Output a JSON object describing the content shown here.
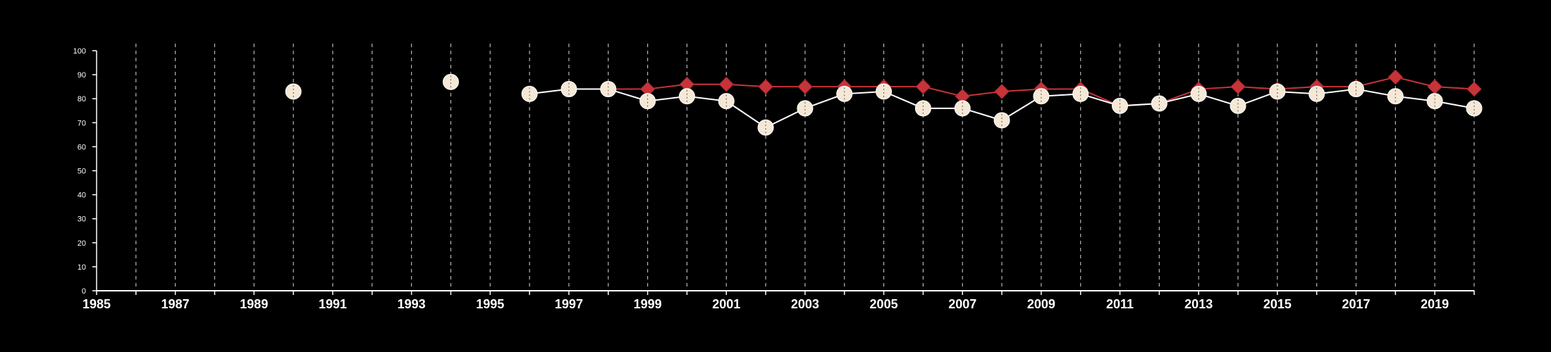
{
  "chart_data": {
    "type": "line",
    "title": "",
    "xlabel": "",
    "ylabel": "",
    "xlim": [
      1985,
      2020
    ],
    "ylim": [
      0,
      100
    ],
    "x_tick_labels": [
      "1985",
      "1987",
      "1989",
      "1991",
      "1993",
      "1995",
      "1997",
      "1999",
      "2001",
      "2003",
      "2005",
      "2007",
      "2009",
      "2011",
      "2013",
      "2015",
      "2017",
      "2019"
    ],
    "y_tick_labels": [
      "0",
      "10",
      "20",
      "30",
      "40",
      "50",
      "60",
      "70",
      "80",
      "90",
      "100"
    ],
    "grid": "vertical dashed lines at each year",
    "legend": "none",
    "colors": {
      "background": "#000000",
      "axis": "#ffffff",
      "grid": "#b5b5b5",
      "series_a": "#c8333a",
      "series_b_fill": "#f5e8d6",
      "series_b_line": "#ffffff"
    },
    "series": [
      {
        "marker": "diamond",
        "x": [
          1990,
          1994,
          1996,
          1997,
          1998,
          1999,
          2000,
          2001,
          2002,
          2003,
          2004,
          2005,
          2006,
          2007,
          2008,
          2009,
          2010,
          2011,
          2012,
          2013,
          2014,
          2015,
          2016,
          2017,
          2018,
          2019,
          2020
        ],
        "values": [
          83,
          87,
          82,
          84,
          84,
          84,
          86,
          86,
          85,
          85,
          85,
          85,
          85,
          81,
          83,
          84,
          84,
          77,
          78,
          84,
          85,
          84,
          85,
          85,
          89,
          85,
          84
        ]
      },
      {
        "marker": "circle",
        "x": [
          1990,
          1994,
          1996,
          1997,
          1998,
          1999,
          2000,
          2001,
          2002,
          2003,
          2004,
          2005,
          2006,
          2007,
          2008,
          2009,
          2010,
          2011,
          2012,
          2013,
          2014,
          2015,
          2016,
          2017,
          2018,
          2019,
          2020
        ],
        "values": [
          83,
          87,
          82,
          84,
          84,
          79,
          81,
          79,
          68,
          76,
          82,
          83,
          76,
          76,
          71,
          81,
          82,
          77,
          78,
          82,
          77,
          83,
          82,
          84,
          81,
          79,
          76
        ]
      }
    ]
  }
}
